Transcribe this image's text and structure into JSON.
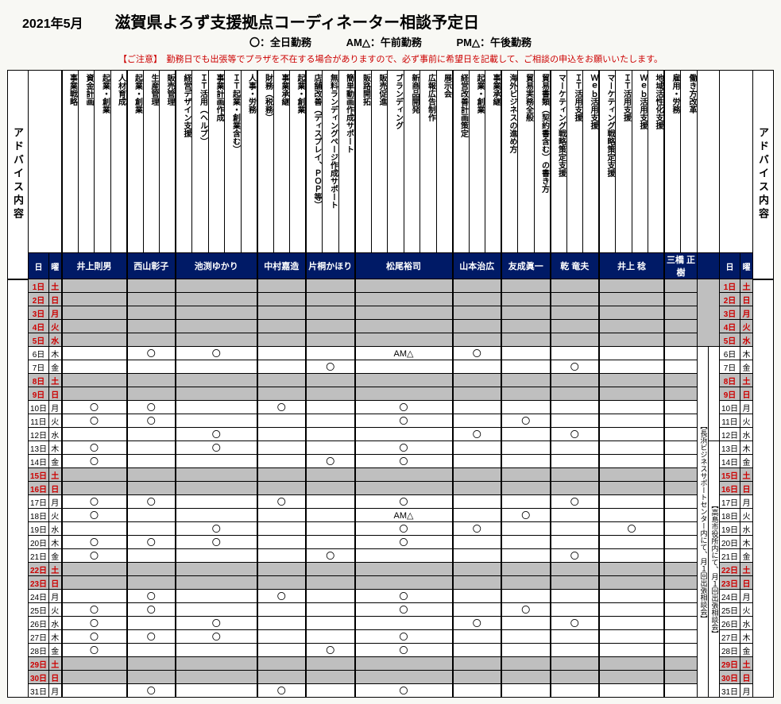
{
  "period": "2021年5月",
  "title": "滋賀県よろず支援拠点コーディネーター相談予定日",
  "legend": {
    "full": "〇：全日勤務",
    "am": "AM△：午前勤務",
    "pm": "PM△：午後勤務"
  },
  "notice": "【ご注意】　勤務日でも出張等でプラザを不在する場合がありますので、必ず事前に希望日を記載して、ご相談の申込をお願いいたします。",
  "adviceLabel": "アドバイス内容",
  "dayHead": "日",
  "weekHead": "曜",
  "annotations": {
    "nagahama": "【長浜ビジネスサポートセンター内にて、月１回出張相談会】",
    "takashima": "【高島市役所内にて、月１回出張相談会】"
  },
  "coordinators": [
    {
      "name": "井上則男",
      "topics": [
        "事業戦略",
        "資金計画",
        "起業・創業",
        "人材育成"
      ]
    },
    {
      "name": "西山彰子",
      "topics": [
        "起業・創業",
        "生産管理",
        "販売管理"
      ]
    },
    {
      "name": "池渕ゆかり",
      "topics": [
        "経営デザイン支援",
        "ＩＴ活用（ヘルプ）",
        "事業計画作成",
        "ＩＴ起業・創業含む）",
        "人事・労務"
      ]
    },
    {
      "name": "中村嘉造",
      "topics": [
        "財務（税務）",
        "事業承継",
        "起業・創業"
      ]
    },
    {
      "name": "片桐かほり",
      "topics": [
        "店舗改善（ディスプレイ、ＰＯＰ等）",
        "無料ランディングページ作成サポート",
        "簡単動画作成サポート"
      ]
    },
    {
      "name": "松尾裕司",
      "topics": [
        "販路開拓",
        "販売促進",
        "ブランディング",
        "新商品開発",
        "広報広告制作",
        "展示会"
      ]
    },
    {
      "name": "山本治広",
      "topics": [
        "経営改善計画策定",
        "起業・創業",
        "事業承継"
      ]
    },
    {
      "name": "友成眞一",
      "topics": [
        "海外ビジネスの進め方",
        "貿易実務全般",
        "貿易書類（契約書含む）の書き方"
      ]
    },
    {
      "name": "乾 竜夫",
      "topics": [
        "マーケティング戦略策定支援",
        "ＩＴ活用支援",
        "Ｗｅｂ活用支援"
      ]
    },
    {
      "name": "井上 稔",
      "topics": [
        "マーケティング戦略策定支援",
        "ＩＴ活用支援",
        "Ｗｅｂ活用支援",
        "地域活性化支援"
      ]
    },
    {
      "name": "三橋 正樹",
      "topics": [
        "雇用・労務",
        "働き方改革"
      ]
    }
  ],
  "days": [
    {
      "d": "1日",
      "w": "土",
      "hol": true,
      "s": [
        "",
        "",
        "",
        "",
        "",
        "",
        "",
        "",
        "",
        "",
        ""
      ]
    },
    {
      "d": "2日",
      "w": "日",
      "hol": true,
      "s": [
        "",
        "",
        "",
        "",
        "",
        "",
        "",
        "",
        "",
        "",
        ""
      ]
    },
    {
      "d": "3日",
      "w": "月",
      "hol": true,
      "s": [
        "",
        "",
        "",
        "",
        "",
        "",
        "",
        "",
        "",
        "",
        ""
      ]
    },
    {
      "d": "4日",
      "w": "火",
      "hol": true,
      "s": [
        "",
        "",
        "",
        "",
        "",
        "",
        "",
        "",
        "",
        "",
        ""
      ]
    },
    {
      "d": "5日",
      "w": "水",
      "hol": true,
      "s": [
        "",
        "",
        "",
        "",
        "",
        "",
        "",
        "",
        "",
        "",
        ""
      ]
    },
    {
      "d": "6日",
      "w": "木",
      "hol": false,
      "s": [
        "",
        "〇",
        "〇",
        "",
        "",
        "AM△",
        "〇",
        "",
        "",
        "",
        ""
      ]
    },
    {
      "d": "7日",
      "w": "金",
      "hol": false,
      "s": [
        "",
        "",
        "",
        "",
        "〇",
        "",
        "",
        "",
        "〇",
        "",
        ""
      ]
    },
    {
      "d": "8日",
      "w": "土",
      "hol": true,
      "s": [
        "",
        "",
        "",
        "",
        "",
        "",
        "",
        "",
        "",
        "",
        ""
      ]
    },
    {
      "d": "9日",
      "w": "日",
      "hol": true,
      "s": [
        "",
        "",
        "",
        "",
        "",
        "",
        "",
        "",
        "",
        "",
        ""
      ]
    },
    {
      "d": "10日",
      "w": "月",
      "hol": false,
      "s": [
        "〇",
        "〇",
        "",
        "〇",
        "",
        "〇",
        "",
        "",
        "",
        "",
        ""
      ]
    },
    {
      "d": "11日",
      "w": "火",
      "hol": false,
      "s": [
        "〇",
        "〇",
        "",
        "",
        "",
        "〇",
        "",
        "〇",
        "",
        "",
        ""
      ]
    },
    {
      "d": "12日",
      "w": "水",
      "hol": false,
      "s": [
        "",
        "",
        "〇",
        "",
        "",
        "",
        "〇",
        "",
        "〇",
        "",
        ""
      ]
    },
    {
      "d": "13日",
      "w": "木",
      "hol": false,
      "s": [
        "〇",
        "",
        "〇",
        "",
        "",
        "〇",
        "",
        "",
        "",
        "",
        ""
      ]
    },
    {
      "d": "14日",
      "w": "金",
      "hol": false,
      "s": [
        "〇",
        "",
        "",
        "",
        "〇",
        "〇",
        "",
        "",
        "",
        "",
        ""
      ]
    },
    {
      "d": "15日",
      "w": "土",
      "hol": true,
      "s": [
        "",
        "",
        "",
        "",
        "",
        "",
        "",
        "",
        "",
        "",
        ""
      ]
    },
    {
      "d": "16日",
      "w": "日",
      "hol": true,
      "s": [
        "",
        "",
        "",
        "",
        "",
        "",
        "",
        "",
        "",
        "",
        ""
      ]
    },
    {
      "d": "17日",
      "w": "月",
      "hol": false,
      "s": [
        "〇",
        "〇",
        "",
        "〇",
        "",
        "〇",
        "",
        "",
        "〇",
        "",
        ""
      ]
    },
    {
      "d": "18日",
      "w": "火",
      "hol": false,
      "s": [
        "〇",
        "",
        "",
        "",
        "",
        "AM△",
        "",
        "〇",
        "",
        "",
        ""
      ]
    },
    {
      "d": "19日",
      "w": "水",
      "hol": false,
      "s": [
        "",
        "",
        "〇",
        "",
        "",
        "〇",
        "〇",
        "",
        "",
        "〇",
        ""
      ]
    },
    {
      "d": "20日",
      "w": "木",
      "hol": false,
      "s": [
        "〇",
        "〇",
        "〇",
        "",
        "",
        "〇",
        "",
        "",
        "",
        "",
        ""
      ]
    },
    {
      "d": "21日",
      "w": "金",
      "hol": false,
      "s": [
        "〇",
        "",
        "",
        "",
        "〇",
        "",
        "",
        "",
        "〇",
        "",
        ""
      ]
    },
    {
      "d": "22日",
      "w": "土",
      "hol": true,
      "s": [
        "",
        "",
        "",
        "",
        "",
        "",
        "",
        "",
        "",
        "",
        ""
      ]
    },
    {
      "d": "23日",
      "w": "日",
      "hol": true,
      "s": [
        "",
        "",
        "",
        "",
        "",
        "",
        "",
        "",
        "",
        "",
        ""
      ]
    },
    {
      "d": "24日",
      "w": "月",
      "hol": false,
      "s": [
        "",
        "〇",
        "",
        "〇",
        "",
        "〇",
        "",
        "",
        "",
        "",
        ""
      ]
    },
    {
      "d": "25日",
      "w": "火",
      "hol": false,
      "s": [
        "〇",
        "〇",
        "",
        "",
        "",
        "〇",
        "",
        "〇",
        "",
        "",
        ""
      ]
    },
    {
      "d": "26日",
      "w": "水",
      "hol": false,
      "s": [
        "〇",
        "",
        "〇",
        "",
        "",
        "",
        "〇",
        "",
        "〇",
        "",
        ""
      ]
    },
    {
      "d": "27日",
      "w": "木",
      "hol": false,
      "s": [
        "〇",
        "〇",
        "〇",
        "",
        "",
        "〇",
        "",
        "",
        "",
        "",
        ""
      ]
    },
    {
      "d": "28日",
      "w": "金",
      "hol": false,
      "s": [
        "〇",
        "",
        "",
        "",
        "〇",
        "〇",
        "",
        "",
        "",
        "",
        ""
      ]
    },
    {
      "d": "29日",
      "w": "土",
      "hol": true,
      "s": [
        "",
        "",
        "",
        "",
        "",
        "",
        "",
        "",
        "",
        "",
        ""
      ]
    },
    {
      "d": "30日",
      "w": "日",
      "hol": true,
      "s": [
        "",
        "",
        "",
        "",
        "",
        "",
        "",
        "",
        "",
        "",
        ""
      ]
    },
    {
      "d": "31日",
      "w": "月",
      "hol": false,
      "s": [
        "",
        "〇",
        "",
        "〇",
        "",
        "〇",
        "",
        "",
        "",
        "",
        ""
      ]
    }
  ]
}
